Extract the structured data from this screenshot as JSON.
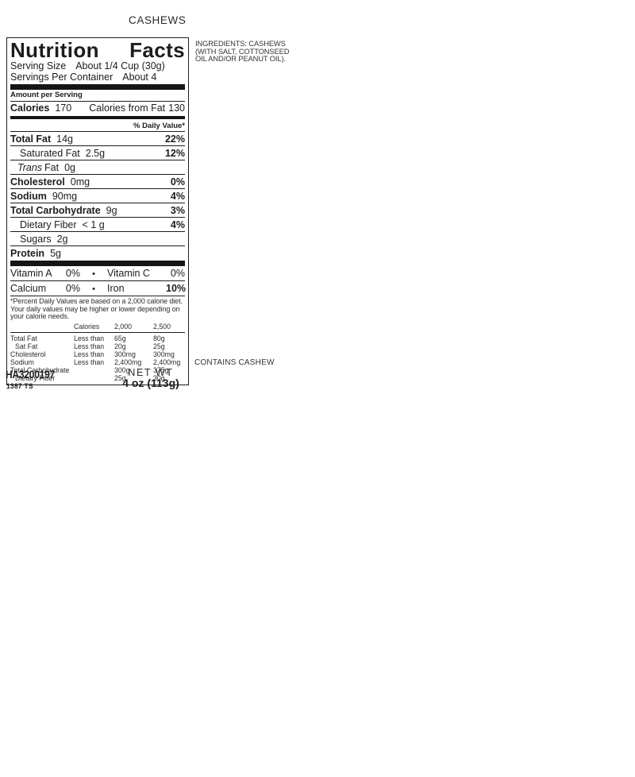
{
  "page": {
    "title": "CASHEWS"
  },
  "ingredients": {
    "text": "INGREDIENTS: CASHEWS (WITH SALT, COTTONSEED OIL AND/OR PEANUT OIL)."
  },
  "contains": {
    "text": "CONTAINS CASHEW"
  },
  "label": {
    "title": "Nutrition Facts",
    "serving_size": {
      "label": "Serving Size",
      "value": "About 1/4 Cup (30g)"
    },
    "servings_per_container": {
      "label": "Servings Per Container",
      "value": "About 4"
    },
    "amount_per_serving": "Amount per Serving",
    "calories": {
      "label": "Calories",
      "value": "170",
      "from_fat_label": "Calories from Fat",
      "from_fat_value": "130"
    },
    "daily_value_header": "% Daily Value*",
    "nutrients": [
      {
        "name": "Total Fat",
        "amount": "14g",
        "dv": "22%"
      },
      {
        "name": "Saturated Fat",
        "amount": "2.5g",
        "dv": "12%"
      },
      {
        "name_italic": "Trans",
        "name": "Fat",
        "amount": "0g",
        "dv": ""
      },
      {
        "name": "Cholesterol",
        "amount": "0mg",
        "dv": "0%"
      },
      {
        "name": "Sodium",
        "amount": "90mg",
        "dv": "4%"
      },
      {
        "name": "Total Carbohydrate",
        "amount": "9g",
        "dv": "3%"
      },
      {
        "name": "Dietary Fiber",
        "amount": "< 1 g",
        "dv": "4%"
      },
      {
        "name": "Sugars",
        "amount": "2g",
        "dv": ""
      },
      {
        "name": "Protein",
        "amount": "5g",
        "dv": ""
      }
    ],
    "vitamins": [
      {
        "left_name": "Vitamin A",
        "left_value": "0%",
        "bullet": "•",
        "right_name": "Vitamin C",
        "right_value": "0%"
      },
      {
        "left_name": "Calcium",
        "left_value": "0%",
        "bullet": "•",
        "right_name": "Iron",
        "right_value": "10%"
      }
    ],
    "footnote": "*Percent Daily Values are based on a 2,000 calorie diet. Your daily values may be higher or lower depending on your calorie needs.",
    "footnote_table": {
      "header": {
        "calories_label": "Calories",
        "col_2000": "2,000",
        "col_2500": "2,500"
      },
      "rows": [
        {
          "name": "Total Fat",
          "qualifier": "Less than",
          "v2000": "65g",
          "v2500": "80g"
        },
        {
          "name": "Sat Fat",
          "qualifier": "Less than",
          "v2000": "20g",
          "v2500": "25g"
        },
        {
          "name": "Cholesterol",
          "qualifier": "Less than",
          "v2000": "300mg",
          "v2500": "300mg"
        },
        {
          "name": "Sodium",
          "qualifier": "Less than",
          "v2000": "2,400mg",
          "v2500": "2,400mg"
        },
        {
          "name": "Total Carbohydrate",
          "qualifier": "",
          "v2000": "300g",
          "v2500": "375g"
        },
        {
          "name": "Dietary Fiber",
          "qualifier": "",
          "v2000": "25g",
          "v2500": "30g"
        }
      ]
    }
  },
  "footer": {
    "code": "HA3200197",
    "code2": "1387 TS",
    "net_wt_label": "NET WT",
    "net_wt_value": "4 oz (113g)"
  },
  "colors": {
    "ink": "#1c1c1c",
    "background": "#ffffff"
  }
}
